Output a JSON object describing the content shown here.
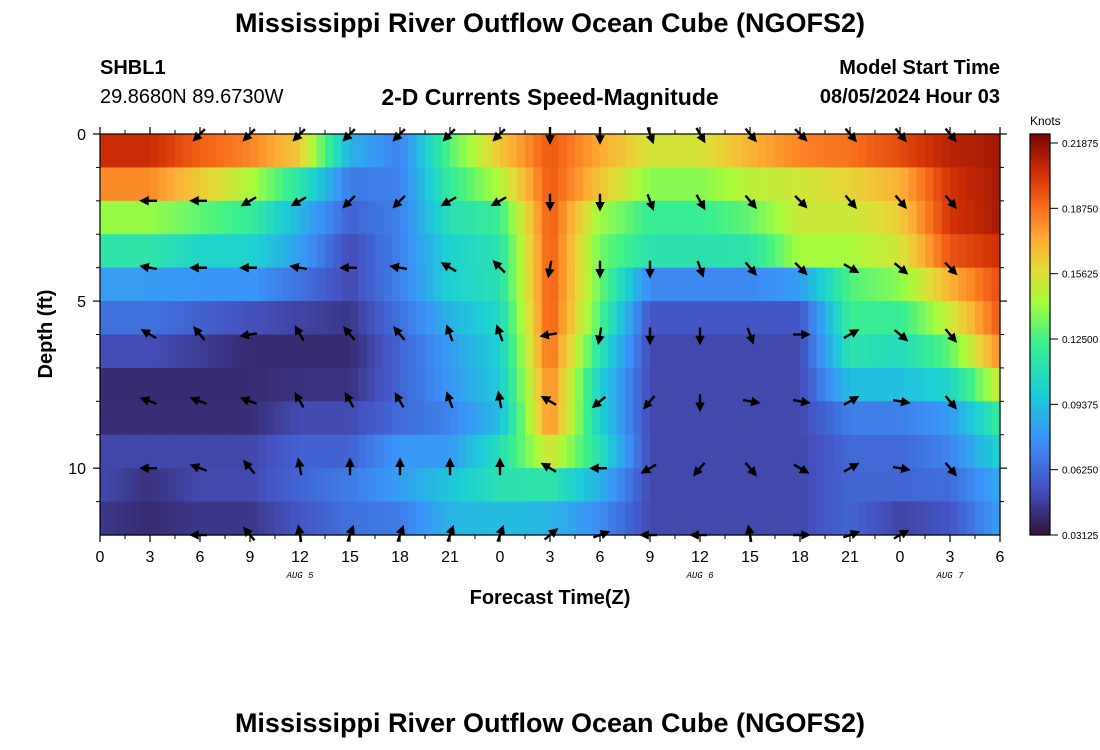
{
  "header": {
    "title": "Mississippi River Outflow Ocean Cube (NGOFS2)",
    "station_id": "SHBL1",
    "station_coords": "29.8680N  89.6730W",
    "subtitle": "2-D Currents Speed-Magnitude",
    "model_start_label": "Model Start Time",
    "model_start_value": "08/05/2024 Hour 03"
  },
  "footer": {
    "title": "Mississippi River Outflow Ocean Cube (NGOFS2)"
  },
  "chart_data": {
    "type": "heatmap",
    "xlabel": "Forecast Time(Z)",
    "ylabel": "Depth (ft)",
    "x_range_hours": [
      0,
      54
    ],
    "y_range_ft": [
      0,
      12
    ],
    "x_ticks": [
      {
        "hour": 0,
        "label": "0"
      },
      {
        "hour": 3,
        "label": "3"
      },
      {
        "hour": 6,
        "label": "6"
      },
      {
        "hour": 9,
        "label": "9"
      },
      {
        "hour": 12,
        "label": "12"
      },
      {
        "hour": 15,
        "label": "15"
      },
      {
        "hour": 18,
        "label": "18"
      },
      {
        "hour": 21,
        "label": "21"
      },
      {
        "hour": 24,
        "label": "0"
      },
      {
        "hour": 27,
        "label": "3"
      },
      {
        "hour": 30,
        "label": "6"
      },
      {
        "hour": 33,
        "label": "9"
      },
      {
        "hour": 36,
        "label": "12"
      },
      {
        "hour": 39,
        "label": "15"
      },
      {
        "hour": 42,
        "label": "18"
      },
      {
        "hour": 45,
        "label": "21"
      },
      {
        "hour": 48,
        "label": "0"
      },
      {
        "hour": 51,
        "label": "3"
      },
      {
        "hour": 54,
        "label": "6"
      }
    ],
    "date_labels": [
      {
        "hour": 12,
        "label": "AUG 5"
      },
      {
        "hour": 36,
        "label": "AUG 6"
      },
      {
        "hour": 51,
        "label": "AUG 7"
      }
    ],
    "y_ticks": [
      {
        "depth": 0,
        "label": "0"
      },
      {
        "depth": 5,
        "label": "5"
      },
      {
        "depth": 10,
        "label": "10"
      }
    ],
    "colorbar": {
      "title": "Knots",
      "range": [
        0.03125,
        0.21875
      ],
      "ticks": [
        "0.03125",
        "0.06250",
        "0.09375",
        "0.12500",
        "0.15625",
        "0.18750",
        "0.21875"
      ]
    },
    "speed_control_points_knots": [
      [
        0.21,
        0.21,
        0.2,
        0.2,
        0.19,
        0.1,
        0.07,
        0.13,
        0.17,
        0.19,
        0.17,
        0.16,
        0.16,
        0.18,
        0.2,
        0.2,
        0.21,
        0.21,
        0.21
      ],
      [
        0.19,
        0.19,
        0.17,
        0.15,
        0.12,
        0.07,
        0.07,
        0.12,
        0.15,
        0.19,
        0.17,
        0.14,
        0.14,
        0.15,
        0.15,
        0.16,
        0.17,
        0.2,
        0.21
      ],
      [
        0.14,
        0.14,
        0.13,
        0.12,
        0.09,
        0.06,
        0.07,
        0.11,
        0.12,
        0.19,
        0.14,
        0.12,
        0.12,
        0.13,
        0.15,
        0.15,
        0.16,
        0.2,
        0.21
      ],
      [
        0.11,
        0.11,
        0.1,
        0.1,
        0.08,
        0.05,
        0.07,
        0.1,
        0.11,
        0.19,
        0.13,
        0.11,
        0.11,
        0.11,
        0.14,
        0.14,
        0.15,
        0.19,
        0.2
      ],
      [
        0.07,
        0.07,
        0.07,
        0.07,
        0.06,
        0.05,
        0.07,
        0.1,
        0.11,
        0.19,
        0.13,
        0.06,
        0.06,
        0.06,
        0.06,
        0.12,
        0.13,
        0.16,
        0.19
      ],
      [
        0.06,
        0.06,
        0.05,
        0.04,
        0.04,
        0.04,
        0.06,
        0.08,
        0.1,
        0.19,
        0.12,
        0.05,
        0.05,
        0.05,
        0.05,
        0.12,
        0.11,
        0.14,
        0.19
      ],
      [
        0.04,
        0.04,
        0.04,
        0.04,
        0.04,
        0.04,
        0.06,
        0.08,
        0.1,
        0.18,
        0.1,
        0.05,
        0.05,
        0.05,
        0.05,
        0.1,
        0.1,
        0.11,
        0.16
      ],
      [
        0.04,
        0.04,
        0.04,
        0.04,
        0.05,
        0.05,
        0.06,
        0.07,
        0.09,
        0.18,
        0.1,
        0.05,
        0.05,
        0.05,
        0.05,
        0.07,
        0.07,
        0.08,
        0.12
      ],
      [
        0.05,
        0.05,
        0.05,
        0.05,
        0.06,
        0.06,
        0.08,
        0.08,
        0.11,
        0.15,
        0.11,
        0.05,
        0.05,
        0.05,
        0.05,
        0.06,
        0.06,
        0.07,
        0.1
      ],
      [
        0.05,
        0.04,
        0.05,
        0.05,
        0.06,
        0.07,
        0.08,
        0.1,
        0.11,
        0.1,
        0.08,
        0.05,
        0.05,
        0.05,
        0.05,
        0.06,
        0.06,
        0.06,
        0.08
      ],
      [
        0.04,
        0.04,
        0.04,
        0.04,
        0.05,
        0.06,
        0.06,
        0.08,
        0.08,
        0.08,
        0.07,
        0.05,
        0.05,
        0.05,
        0.05,
        0.06,
        0.04,
        0.05,
        0.08
      ]
    ],
    "vector_rows_depth_ft": [
      0,
      2,
      4,
      6,
      8,
      10,
      12
    ],
    "vector_cols_hours": [
      3,
      6,
      9,
      12,
      15,
      18,
      21,
      24,
      27,
      30,
      33,
      36,
      39,
      42,
      45,
      48,
      51
    ],
    "vector_directions_deg": [
      [
        null,
        225,
        225,
        225,
        225,
        225,
        225,
        225,
        180,
        180,
        160,
        150,
        140,
        135,
        140,
        140,
        140
      ],
      [
        270,
        270,
        240,
        240,
        225,
        225,
        240,
        240,
        180,
        180,
        160,
        150,
        140,
        135,
        140,
        140,
        140
      ],
      [
        280,
        270,
        270,
        280,
        270,
        280,
        300,
        315,
        190,
        180,
        180,
        160,
        140,
        135,
        120,
        130,
        135
      ],
      [
        300,
        320,
        260,
        330,
        320,
        320,
        340,
        340,
        260,
        190,
        180,
        180,
        160,
        90,
        60,
        130,
        140
      ],
      [
        290,
        290,
        290,
        330,
        330,
        330,
        340,
        350,
        300,
        230,
        220,
        180,
        100,
        100,
        60,
        100,
        140
      ],
      [
        270,
        290,
        320,
        350,
        0,
        0,
        0,
        0,
        300,
        270,
        240,
        220,
        140,
        120,
        60,
        100,
        140
      ],
      [
        null,
        270,
        320,
        350,
        20,
        20,
        20,
        20,
        50,
        70,
        270,
        270,
        350,
        90,
        70,
        60,
        null
      ]
    ]
  }
}
